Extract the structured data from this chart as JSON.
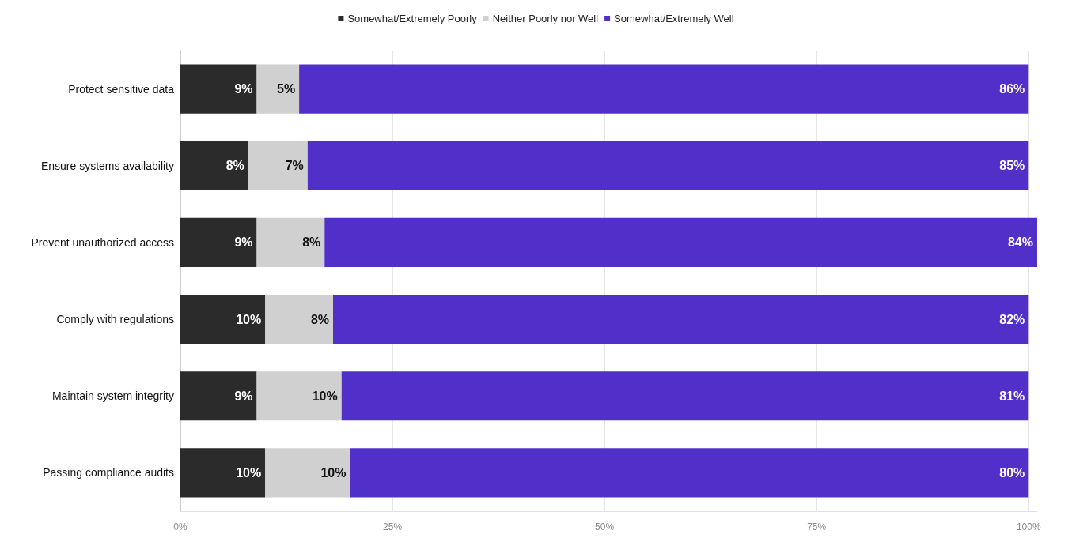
{
  "chart_data": {
    "type": "bar",
    "orientation": "horizontal",
    "stacked": true,
    "categories": [
      "Protect sensitive data",
      "Ensure systems availability",
      "Prevent unauthorized access",
      "Comply with regulations",
      "Maintain system integrity",
      "Passing compliance audits"
    ],
    "series": [
      {
        "name": "Somewhat/Extremely Poorly",
        "color": "#2b2b2b",
        "values": [
          9,
          8,
          9,
          10,
          9,
          10
        ],
        "value_labels": [
          "9%",
          "8%",
          "9%",
          "10%",
          "9%",
          "10%"
        ]
      },
      {
        "name": "Neither Poorly nor Well",
        "color": "#d0d0d0",
        "values": [
          5,
          7,
          8,
          8,
          10,
          10
        ],
        "value_labels": [
          "5%",
          "7%",
          "8%",
          "8%",
          "10%",
          "10%"
        ]
      },
      {
        "name": "Somewhat/Extremely Well",
        "color": "#5130c9",
        "values": [
          86,
          85,
          84,
          82,
          81,
          80
        ],
        "value_labels": [
          "86%",
          "85%",
          "84%",
          "82%",
          "81%",
          "80%"
        ]
      }
    ],
    "xlim": [
      0,
      101
    ],
    "xticks": [
      {
        "value": 0,
        "label": "0%"
      },
      {
        "value": 25,
        "label": "25%"
      },
      {
        "value": 50,
        "label": "50%"
      },
      {
        "value": 75,
        "label": "75%"
      },
      {
        "value": 100,
        "label": "100%"
      }
    ],
    "grid": "x",
    "legend": "top"
  }
}
